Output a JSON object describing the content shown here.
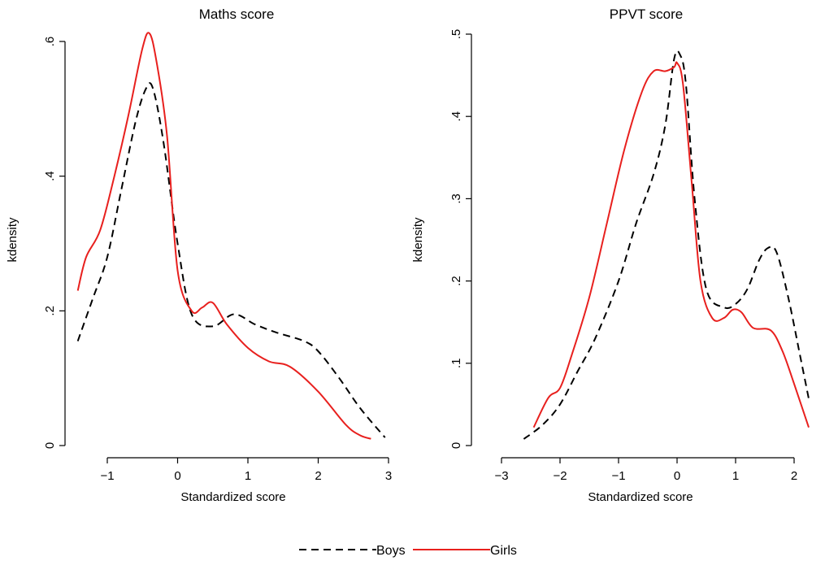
{
  "colors": {
    "boys": "#000000",
    "girls": "#e8201e"
  },
  "legend": {
    "items": [
      {
        "label": "Boys",
        "style": "dashed",
        "color": "#000000"
      },
      {
        "label": "Girls",
        "style": "solid",
        "color": "#e8201e"
      }
    ]
  },
  "chart_data": [
    {
      "type": "line",
      "title": "Maths score",
      "xlabel": "Standardized score",
      "ylabel": "kdensity",
      "xlim": [
        -1.45,
        3.0
      ],
      "ylim": [
        0,
        0.62
      ],
      "xticks": [
        -1,
        0,
        1,
        2,
        3
      ],
      "xtick_labels": [
        "−1",
        "0",
        "1",
        "2",
        "3"
      ],
      "yticks": [
        0,
        0.2,
        0.4,
        0.6
      ],
      "ytick_labels": [
        "0",
        ".2",
        ".4",
        ".6"
      ],
      "series": [
        {
          "name": "Boys",
          "style": "dashed",
          "x": [
            -1.42,
            -1.2,
            -1.0,
            -0.8,
            -0.6,
            -0.45,
            -0.35,
            -0.2,
            0.0,
            0.2,
            0.5,
            0.8,
            1.1,
            1.4,
            1.8,
            2.0,
            2.3,
            2.6,
            2.95
          ],
          "y": [
            0.155,
            0.22,
            0.28,
            0.38,
            0.48,
            0.53,
            0.53,
            0.45,
            0.3,
            0.195,
            0.177,
            0.195,
            0.18,
            0.168,
            0.155,
            0.14,
            0.1,
            0.055,
            0.012
          ]
        },
        {
          "name": "Girls",
          "style": "solid",
          "x": [
            -1.42,
            -1.3,
            -1.1,
            -0.9,
            -0.7,
            -0.5,
            -0.4,
            -0.3,
            -0.15,
            0.0,
            0.2,
            0.35,
            0.5,
            0.7,
            1.0,
            1.3,
            1.6,
            2.0,
            2.4,
            2.6,
            2.75
          ],
          "y": [
            0.23,
            0.28,
            0.32,
            0.4,
            0.49,
            0.59,
            0.612,
            0.57,
            0.46,
            0.26,
            0.2,
            0.205,
            0.212,
            0.18,
            0.145,
            0.125,
            0.117,
            0.08,
            0.03,
            0.015,
            0.01
          ]
        }
      ]
    },
    {
      "type": "line",
      "title": "PPVT score",
      "xlabel": "Standardized score",
      "ylabel": "kdensity",
      "xlim": [
        -2.8,
        2.3
      ],
      "ylim": [
        0,
        0.5
      ],
      "xticks": [
        -3,
        -2,
        -1,
        0,
        1,
        2
      ],
      "xtick_labels": [
        "−3",
        "−2",
        "−1",
        "0",
        "1",
        "2"
      ],
      "yticks": [
        0,
        0.1,
        0.2,
        0.3,
        0.4,
        0.5
      ],
      "ytick_labels": [
        "0",
        ".1",
        ".2",
        ".3",
        ".4",
        ".5"
      ],
      "series": [
        {
          "name": "Boys",
          "style": "dashed",
          "x": [
            -2.62,
            -2.3,
            -2.0,
            -1.7,
            -1.4,
            -1.0,
            -0.7,
            -0.4,
            -0.2,
            -0.05,
            0.05,
            0.15,
            0.3,
            0.5,
            0.8,
            1.0,
            1.2,
            1.4,
            1.55,
            1.7,
            1.9,
            2.1,
            2.25
          ],
          "y": [
            0.008,
            0.025,
            0.05,
            0.09,
            0.13,
            0.2,
            0.27,
            0.33,
            0.39,
            0.47,
            0.475,
            0.44,
            0.3,
            0.19,
            0.168,
            0.172,
            0.19,
            0.225,
            0.24,
            0.235,
            0.18,
            0.11,
            0.057
          ]
        },
        {
          "name": "Girls",
          "style": "solid",
          "x": [
            -2.45,
            -2.2,
            -2.0,
            -1.8,
            -1.5,
            -1.2,
            -0.9,
            -0.6,
            -0.4,
            -0.2,
            -0.05,
            0.0,
            0.1,
            0.25,
            0.4,
            0.6,
            0.8,
            0.95,
            1.1,
            1.3,
            1.6,
            1.8,
            2.0,
            2.25
          ],
          "y": [
            0.022,
            0.058,
            0.07,
            0.11,
            0.18,
            0.27,
            0.36,
            0.43,
            0.455,
            0.455,
            0.46,
            0.465,
            0.44,
            0.32,
            0.2,
            0.155,
            0.155,
            0.165,
            0.162,
            0.143,
            0.14,
            0.115,
            0.075,
            0.022
          ]
        }
      ]
    }
  ]
}
